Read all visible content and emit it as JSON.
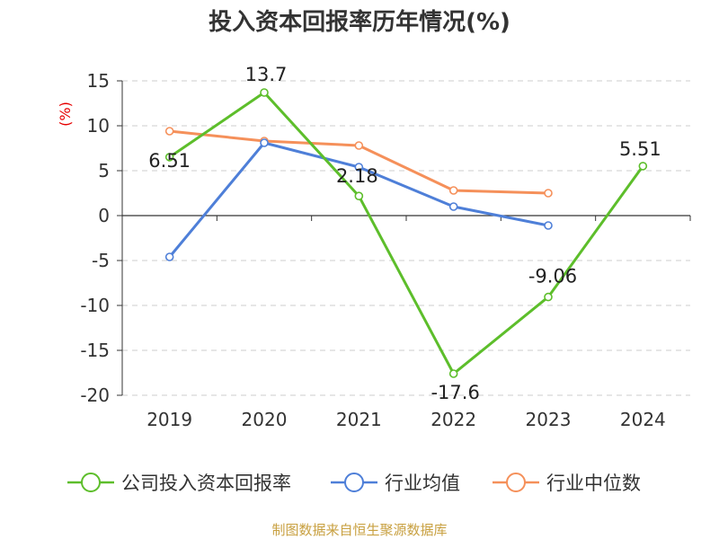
{
  "chart_data": {
    "type": "line",
    "title": "投入资本回报率历年情况(%)",
    "ylabel": "(%)",
    "xlabel": "",
    "ylim": [
      -20,
      15
    ],
    "yticks": [
      15,
      10,
      5,
      0,
      -5,
      -10,
      -15,
      -20
    ],
    "categories": [
      "2019",
      "2020",
      "2021",
      "2022",
      "2023",
      "2024"
    ],
    "series": [
      {
        "name": "公司投入资本回报率",
        "color": "#5dbe2b",
        "values": [
          6.51,
          13.7,
          2.18,
          -17.6,
          -9.06,
          5.51
        ],
        "labels": [
          "6.51",
          "13.7",
          "2.18",
          "-17.6",
          "-9.06",
          "5.51"
        ]
      },
      {
        "name": "行业均值",
        "color": "#4e7fd8",
        "values": [
          -4.6,
          8.1,
          5.4,
          1.0,
          -1.1,
          null
        ]
      },
      {
        "name": "行业中位数",
        "color": "#f5905a",
        "values": [
          9.4,
          8.3,
          7.8,
          2.8,
          2.5,
          null
        ]
      }
    ],
    "source": "制图数据来自恒生聚源数据库"
  }
}
